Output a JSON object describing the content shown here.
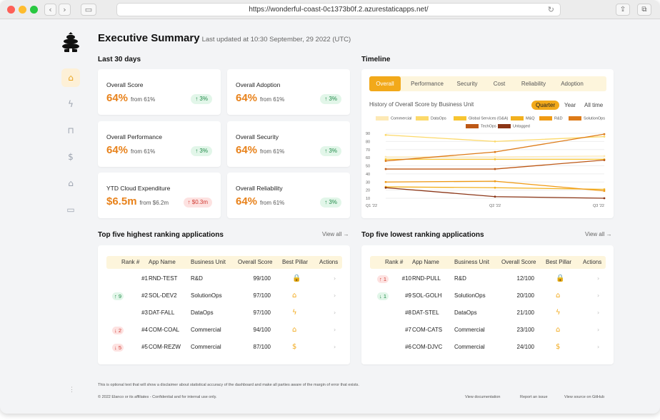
{
  "browser": {
    "url": "https://wonderful-coast-0c1373b0f.2.azurestaticapps.net/"
  },
  "header": {
    "title": "Executive Summary",
    "updated": "Last updated at 10:30 September, 29 2022 (UTC)"
  },
  "kpi": {
    "section": "Last 30 days",
    "cards": [
      {
        "label": "Overall Score",
        "value": "64%",
        "from": "from 61%",
        "delta": "↑ 3%",
        "trend": "up"
      },
      {
        "label": "Overall Adoption",
        "value": "64%",
        "from": "from 61%",
        "delta": "↑ 3%",
        "trend": "up"
      },
      {
        "label": "Overall Performance",
        "value": "64%",
        "from": "from 61%",
        "delta": "↑ 3%",
        "trend": "up"
      },
      {
        "label": "Overall Security",
        "value": "64%",
        "from": "from 61%",
        "delta": "↑ 3%",
        "trend": "up"
      },
      {
        "label": "YTD Cloud Expenditure",
        "value": "$6.5m",
        "from": "from $6.2m",
        "delta": "↑ $0.3m",
        "trend": "down"
      },
      {
        "label": "Overall Reliability",
        "value": "64%",
        "from": "from 61%",
        "delta": "↑ 3%",
        "trend": "up"
      }
    ]
  },
  "timeline": {
    "section": "Timeline",
    "tabs": [
      "Overall",
      "Performance",
      "Security",
      "Cost",
      "Reliability",
      "Adoption"
    ],
    "active_tab": "Overall",
    "history_label": "History of Overall Score by Business Unit",
    "periods": [
      "Quarter",
      "Year",
      "All time"
    ],
    "active_period": "Quarter"
  },
  "chart_data": {
    "type": "line",
    "x": [
      "Q1 '22",
      "Q2 '22",
      "Q3 '22"
    ],
    "ylim": [
      10,
      90
    ],
    "yticks": [
      10,
      20,
      30,
      40,
      50,
      60,
      70,
      80,
      90
    ],
    "grid": true,
    "legend_position": "top",
    "series": [
      {
        "name": "Commercial",
        "color": "#fde9b5",
        "values": [
          61,
          61,
          62
        ]
      },
      {
        "name": "DataOps",
        "color": "#fcd96a",
        "values": [
          88,
          80,
          86
        ]
      },
      {
        "name": "Global Services (G&A)",
        "color": "#f7c531",
        "values": [
          58,
          58,
          58
        ]
      },
      {
        "name": "M&Q",
        "color": "#f2b01e",
        "values": [
          24,
          23,
          21
        ]
      },
      {
        "name": "R&D",
        "color": "#f09a13",
        "values": [
          30,
          31,
          19
        ]
      },
      {
        "name": "SolutionOps",
        "color": "#dd7a17",
        "values": [
          56,
          67,
          89
        ]
      },
      {
        "name": "TechOps",
        "color": "#bd5816",
        "values": [
          46,
          46,
          57
        ]
      },
      {
        "name": "Untagged",
        "color": "#8b3516",
        "values": [
          23,
          12,
          10
        ]
      }
    ]
  },
  "top_apps": {
    "title": "Top five highest ranking applications",
    "view_all": "View all →",
    "columns": [
      "Rank #",
      "App Name",
      "Business Unit",
      "Overall Score",
      "Best Pillar",
      "Actions"
    ],
    "rows": [
      {
        "move": "",
        "move_dir": "",
        "rank": "#1",
        "app": "RND-TEST",
        "bu": "R&D",
        "score": "99/100",
        "pillar_icon": "lock-icon",
        "pillar": "🔒"
      },
      {
        "move": "↑ 9",
        "move_dir": "up",
        "rank": "#2",
        "app": "SOL-DEV2",
        "bu": "SolutionOps",
        "score": "97/100",
        "pillar_icon": "adoption-icon",
        "pillar": "⌂"
      },
      {
        "move": "",
        "move_dir": "",
        "rank": "#3",
        "app": "DAT-FALL",
        "bu": "DataOps",
        "score": "97/100",
        "pillar_icon": "bolt-icon",
        "pillar": "ϟ"
      },
      {
        "move": "↓ 2",
        "move_dir": "down",
        "rank": "#4",
        "app": "COM-COAL",
        "bu": "Commercial",
        "score": "94/100",
        "pillar_icon": "adoption-icon",
        "pillar": "⌂"
      },
      {
        "move": "↓ 5",
        "move_dir": "down",
        "rank": "#5",
        "app": "COM-REZW",
        "bu": "Commercial",
        "score": "87/100",
        "pillar_icon": "dollar-icon",
        "pillar": "$"
      }
    ]
  },
  "low_apps": {
    "title": "Top five lowest ranking applications",
    "view_all": "View all →",
    "columns": [
      "Rank #",
      "App Name",
      "Business Unit",
      "Overall Score",
      "Best Pillar",
      "Actions"
    ],
    "rows": [
      {
        "move": "↑ 1",
        "move_dir": "down",
        "rank": "#10",
        "app": "RND-PULL",
        "bu": "R&D",
        "score": "12/100",
        "pillar_icon": "lock-icon",
        "pillar": "🔒"
      },
      {
        "move": "↓ 1",
        "move_dir": "up",
        "rank": "#9",
        "app": "SOL-GOLH",
        "bu": "SolutionOps",
        "score": "20/100",
        "pillar_icon": "adoption-icon",
        "pillar": "⌂"
      },
      {
        "move": "",
        "move_dir": "",
        "rank": "#8",
        "app": "DAT-STEL",
        "bu": "DataOps",
        "score": "21/100",
        "pillar_icon": "bolt-icon",
        "pillar": "ϟ"
      },
      {
        "move": "",
        "move_dir": "",
        "rank": "#7",
        "app": "COM-CATS",
        "bu": "Commercial",
        "score": "23/100",
        "pillar_icon": "adoption-icon",
        "pillar": "⌂"
      },
      {
        "move": "",
        "move_dir": "",
        "rank": "#6",
        "app": "COM-DJVC",
        "bu": "Commercial",
        "score": "24/100",
        "pillar_icon": "dollar-icon",
        "pillar": "$"
      }
    ]
  },
  "footer": {
    "disclaimer": "This is optional text that will show a disclaimer about statistical accuracy of the dashboard and make all parties aware of the margin of error that exists.",
    "copyright": "© 2022 Elanco or its affiliates - Confidential and for internal use only.",
    "links": [
      "View documentation",
      "Report an issue",
      "View source on GitHub"
    ]
  },
  "colors": {
    "accent": "#f2a91a",
    "kpi_value": "#e8821b"
  }
}
